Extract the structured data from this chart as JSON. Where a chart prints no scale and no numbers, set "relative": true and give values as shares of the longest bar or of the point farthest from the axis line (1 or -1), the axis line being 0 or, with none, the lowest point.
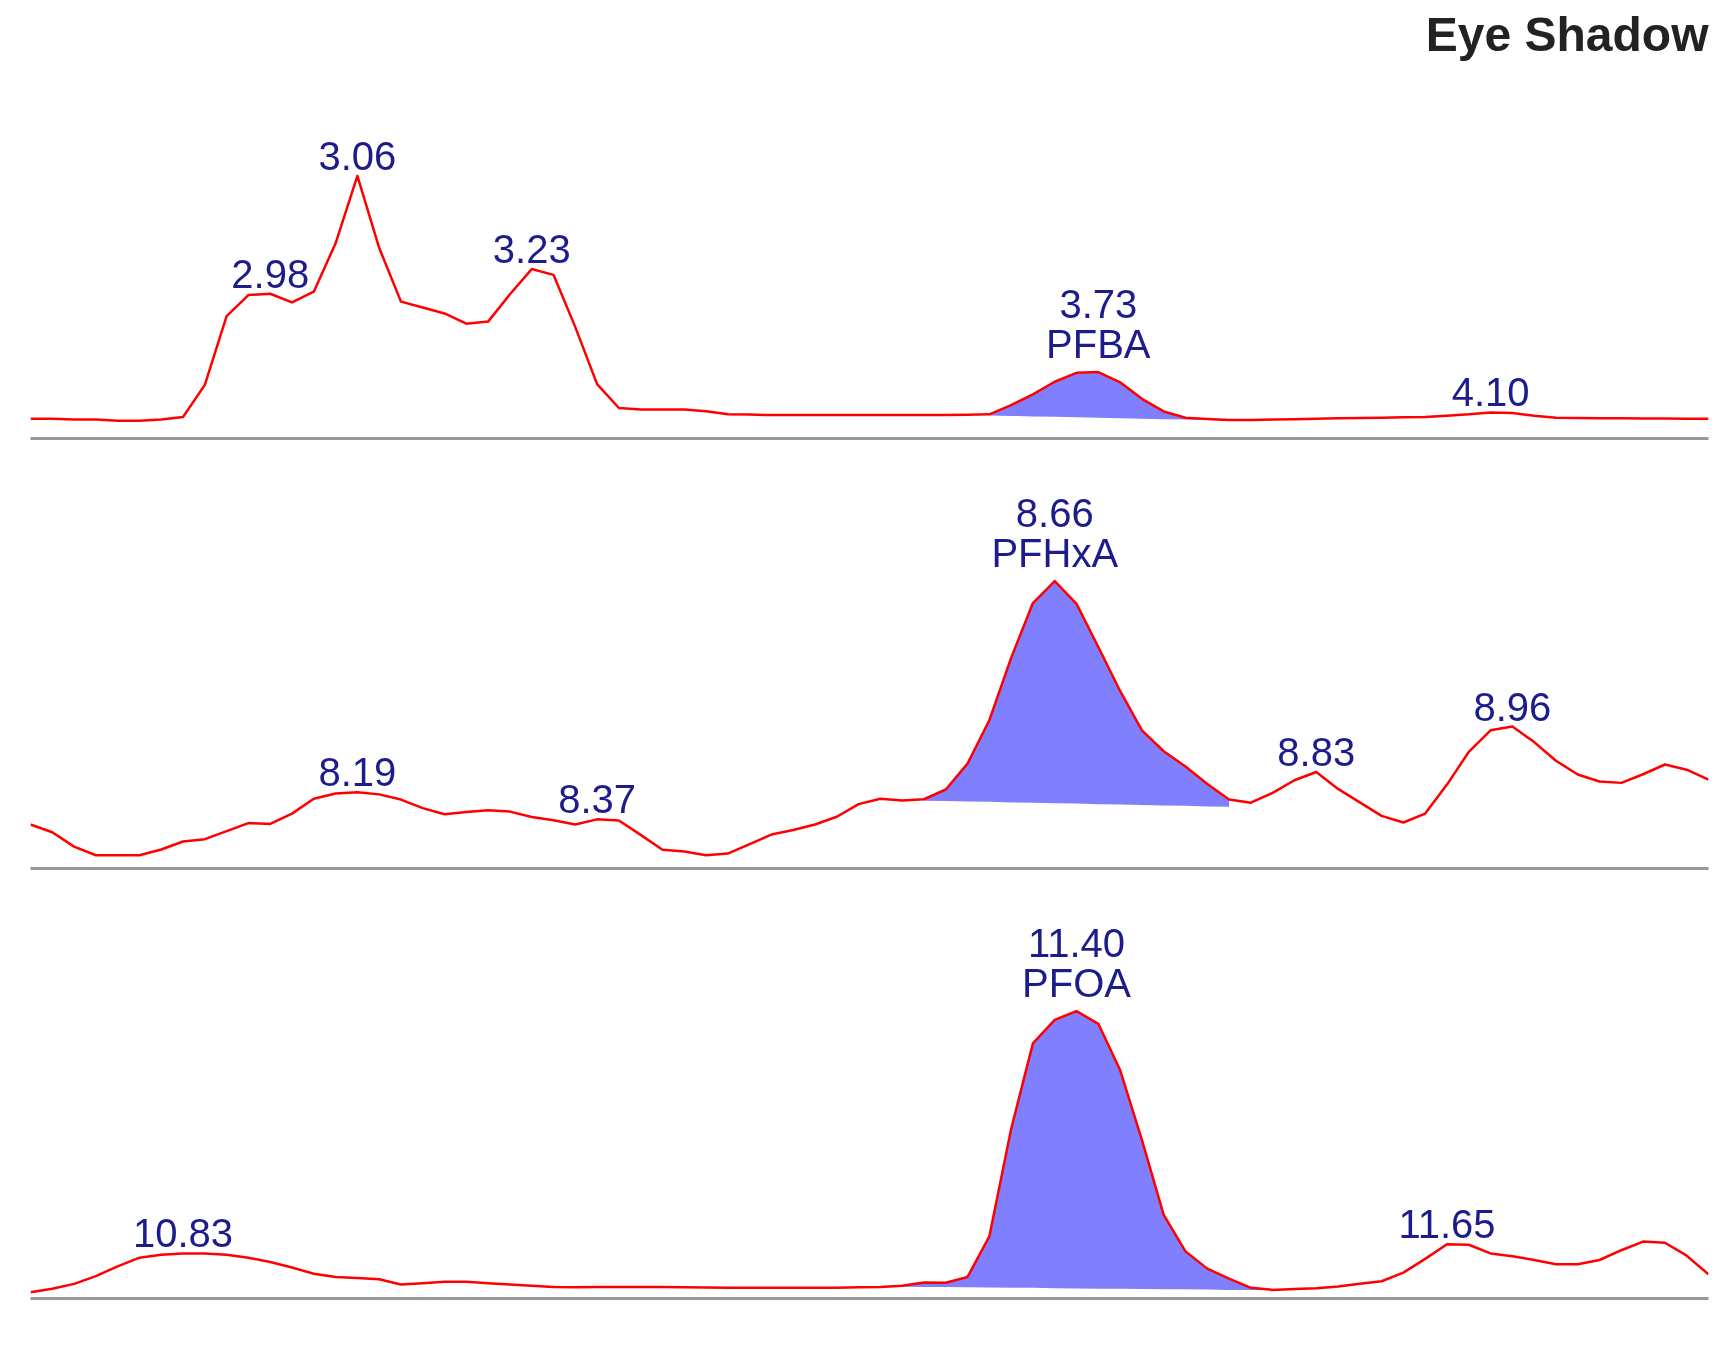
{
  "chart_data": [
    {
      "type": "line",
      "title": "Eye Shadow",
      "relative": true,
      "categories": [
        null,
        null,
        null,
        null,
        null,
        null,
        null,
        null,
        null,
        null,
        null,
        null,
        null,
        null,
        null,
        null,
        null,
        null,
        null,
        null,
        null,
        null,
        null,
        null,
        null,
        null,
        null,
        null,
        null,
        null,
        null,
        null,
        null,
        null,
        null,
        null,
        null,
        null,
        null,
        null,
        null,
        null,
        null,
        null,
        null,
        null,
        null,
        null,
        null,
        null,
        null,
        null,
        null,
        null,
        null,
        null,
        null,
        null,
        null,
        null,
        null,
        null,
        null,
        null,
        null,
        null,
        null,
        null,
        null,
        null,
        null,
        null,
        null,
        null,
        null,
        null,
        null,
        null
      ],
      "series": [
        {
          "color": "#ff0000",
          "values": [
            0.075,
            0.075,
            0.072,
            0.072,
            0.068,
            0.068,
            0.072,
            0.082,
            0.204,
            0.466,
            0.546,
            0.551,
            0.518,
            0.559,
            0.743,
            1,
            0.726,
            0.521,
            0.499,
            0.476,
            0.437,
            0.445,
            0.549,
            0.645,
            0.623,
            0.424,
            0.207,
            0.116,
            0.11,
            0.11,
            0.11,
            0.104,
            0.092,
            0.091,
            0.089,
            0.089,
            0.089,
            0.089,
            0.089,
            0.089,
            0.089,
            0.089,
            0.089,
            0.09,
            0.092,
            0.127,
            0.168,
            0.216,
            0.25,
            0.253,
            0.214,
            0.151,
            0.103,
            0.079,
            0.074,
            0.07,
            0.07,
            0.072,
            0.073,
            0.075,
            0.077,
            0.078,
            0.079,
            0.081,
            0.082,
            0.087,
            0.092,
            0.099,
            0.097,
            0.087,
            0.079,
            0.078,
            0.077,
            0.077,
            0.076,
            0.076,
            0.075,
            0.075
          ],
          "lower": [
            null,
            null,
            null,
            null,
            null,
            null,
            null,
            null,
            null,
            null,
            null,
            null,
            null,
            null,
            null,
            null,
            null,
            null,
            null,
            null,
            null,
            null,
            null,
            null,
            null,
            null,
            null,
            null,
            null,
            null,
            null,
            null,
            null,
            null,
            null,
            null,
            null,
            null,
            null,
            null,
            null,
            null,
            null,
            null,
            0.088,
            0.086,
            0.084,
            0.083,
            0.081,
            0.079,
            0.077,
            0.075,
            0.073,
            0.072,
            0.07,
            0.068,
            null,
            null,
            null,
            null,
            null,
            null,
            null,
            null,
            null,
            null,
            null,
            null,
            null,
            null,
            null,
            null,
            null,
            null,
            null,
            null,
            null,
            null
          ],
          "upper": [
            null,
            null,
            null,
            null,
            null,
            null,
            null,
            null,
            null,
            null,
            null,
            null,
            null,
            null,
            null,
            null,
            null,
            null,
            null,
            null,
            null,
            null,
            null,
            null,
            null,
            null,
            null,
            null,
            null,
            null,
            null,
            null,
            null,
            null,
            null,
            null,
            null,
            null,
            null,
            null,
            null,
            null,
            null,
            null,
            0.092,
            0.127,
            0.168,
            0.216,
            0.25,
            0.253,
            0.214,
            0.151,
            0.103,
            0.079,
            0.074,
            0.07,
            null,
            null,
            null,
            null,
            null,
            null,
            null,
            null,
            null,
            null,
            null,
            null,
            null,
            null,
            null,
            null,
            null,
            null,
            null,
            null,
            null,
            null
          ]
        }
      ],
      "annotations": [
        {
          "text": "2.98",
          "y": 0.551
        },
        {
          "text": "3.06",
          "y": 1
        },
        {
          "text": "3.23",
          "y": 0.645
        },
        {
          "text": "3.73",
          "y": 0.253
        },
        {
          "text": "PFBA",
          "y": 0.253
        },
        {
          "text": "4.10",
          "y": 0.099
        }
      ]
    },
    {
      "type": "line",
      "relative": true,
      "categories": [
        null,
        null,
        null,
        null,
        null,
        null,
        null,
        null,
        null,
        null,
        null,
        null,
        null,
        null,
        null,
        null,
        null,
        null,
        null,
        null,
        null,
        null,
        null,
        null,
        null,
        null,
        null,
        null,
        null,
        null,
        null,
        null,
        null,
        null,
        null,
        null,
        null,
        null,
        null,
        null,
        null,
        null,
        null,
        null,
        null,
        null,
        null,
        null,
        null,
        null,
        null,
        null,
        null,
        null,
        null,
        null,
        null,
        null,
        null,
        null,
        null,
        null,
        null,
        null,
        null,
        null,
        null,
        null,
        null,
        null,
        null,
        null,
        null,
        null,
        null,
        null,
        null,
        null
      ],
      "series": [
        {
          "color": "#ff0000",
          "values": [
            0.153,
            0.126,
            0.076,
            0.046,
            0.046,
            0.046,
            0.066,
            0.094,
            0.102,
            0.13,
            0.158,
            0.155,
            0.191,
            0.243,
            0.261,
            0.265,
            0.258,
            0.24,
            0.21,
            0.189,
            0.197,
            0.203,
            0.198,
            0.179,
            0.168,
            0.153,
            0.171,
            0.167,
            0.117,
            0.065,
            0.059,
            0.046,
            0.052,
            0.085,
            0.118,
            0.134,
            0.153,
            0.18,
            0.224,
            0.243,
            0.237,
            0.241,
            0.275,
            0.365,
            0.516,
            0.733,
            0.924,
            1,
            0.921,
            0.771,
            0.618,
            0.481,
            0.408,
            0.355,
            0.294,
            0.24,
            0.229,
            0.263,
            0.307,
            0.336,
            0.277,
            0.23,
            0.183,
            0.16,
            0.191,
            0.292,
            0.406,
            0.481,
            0.494,
            0.44,
            0.375,
            0.327,
            0.303,
            0.298,
            0.328,
            0.362,
            0.344,
            0.309
          ],
          "lower": [
            null,
            null,
            null,
            null,
            null,
            null,
            null,
            null,
            null,
            null,
            null,
            null,
            null,
            null,
            null,
            null,
            null,
            null,
            null,
            null,
            null,
            null,
            null,
            null,
            null,
            null,
            null,
            null,
            null,
            null,
            null,
            null,
            null,
            null,
            null,
            null,
            null,
            null,
            null,
            null,
            null,
            0.236,
            0.235,
            0.233,
            0.232,
            0.23,
            0.229,
            0.227,
            0.226,
            0.224,
            0.223,
            0.221,
            0.219,
            0.218,
            0.216,
            0.215,
            null,
            null,
            null,
            null,
            null,
            null,
            null,
            null,
            null,
            null,
            null,
            null,
            null,
            null,
            null,
            null,
            null,
            null,
            null,
            null,
            null,
            null
          ],
          "upper": [
            null,
            null,
            null,
            null,
            null,
            null,
            null,
            null,
            null,
            null,
            null,
            null,
            null,
            null,
            null,
            null,
            null,
            null,
            null,
            null,
            null,
            null,
            null,
            null,
            null,
            null,
            null,
            null,
            null,
            null,
            null,
            null,
            null,
            null,
            null,
            null,
            null,
            null,
            null,
            null,
            null,
            0.241,
            0.275,
            0.365,
            0.516,
            0.733,
            0.924,
            1,
            0.921,
            0.771,
            0.618,
            0.481,
            0.408,
            0.355,
            0.294,
            0.24,
            null,
            null,
            null,
            null,
            null,
            null,
            null,
            null,
            null,
            null,
            null,
            null,
            null,
            null,
            null,
            null,
            null,
            null,
            null,
            null,
            null,
            null
          ]
        }
      ],
      "annotations": [
        {
          "text": "8.19",
          "y": 0.265
        },
        {
          "text": "8.37",
          "y": 0.171
        },
        {
          "text": "8.66",
          "y": 1
        },
        {
          "text": "PFHxA",
          "y": 1
        },
        {
          "text": "8.83",
          "y": 0.336
        },
        {
          "text": "8.96",
          "y": 0.494
        }
      ]
    },
    {
      "type": "line",
      "relative": true,
      "categories": [
        null,
        null,
        null,
        null,
        null,
        null,
        null,
        null,
        null,
        null,
        null,
        null,
        null,
        null,
        null,
        null,
        null,
        null,
        null,
        null,
        null,
        null,
        null,
        null,
        null,
        null,
        null,
        null,
        null,
        null,
        null,
        null,
        null,
        null,
        null,
        null,
        null,
        null,
        null,
        null,
        null,
        null,
        null,
        null,
        null,
        null,
        null,
        null,
        null,
        null,
        null,
        null,
        null,
        null,
        null,
        null,
        null,
        null,
        null,
        null,
        null,
        null,
        null,
        null,
        null,
        null,
        null,
        null,
        null,
        null,
        null,
        null,
        null,
        null,
        null,
        null,
        null,
        null
      ],
      "series": [
        {
          "color": "#ff0000",
          "values": [
            0.022,
            0.034,
            0.051,
            0.078,
            0.112,
            0.142,
            0.152,
            0.157,
            0.157,
            0.152,
            0.142,
            0.127,
            0.108,
            0.086,
            0.075,
            0.071,
            0.067,
            0.049,
            0.053,
            0.058,
            0.058,
            0.053,
            0.049,
            0.044,
            0.04,
            0.039,
            0.04,
            0.04,
            0.04,
            0.04,
            0.039,
            0.038,
            0.037,
            0.037,
            0.037,
            0.037,
            0.037,
            0.037,
            0.039,
            0.04,
            0.044,
            0.056,
            0.055,
            0.075,
            0.216,
            0.59,
            0.888,
            0.97,
            1,
            0.956,
            0.795,
            0.552,
            0.291,
            0.164,
            0.104,
            0.069,
            0.037,
            0.03,
            0.033,
            0.036,
            0.042,
            0.051,
            0.06,
            0.09,
            0.138,
            0.189,
            0.187,
            0.157,
            0.147,
            0.134,
            0.119,
            0.119,
            0.134,
            0.168,
            0.198,
            0.194,
            0.149,
            0.084
          ],
          "lower": [
            null,
            null,
            null,
            null,
            null,
            null,
            null,
            null,
            null,
            null,
            null,
            null,
            null,
            null,
            null,
            null,
            null,
            null,
            null,
            null,
            null,
            null,
            null,
            null,
            null,
            null,
            null,
            null,
            null,
            null,
            null,
            null,
            null,
            null,
            null,
            null,
            null,
            null,
            null,
            null,
            0.041,
            0.04,
            0.04,
            0.039,
            0.038,
            0.037,
            0.037,
            0.036,
            0.035,
            0.034,
            0.034,
            0.033,
            0.032,
            0.032,
            0.031,
            0.03,
            0.03,
            0.03,
            null,
            null,
            null,
            null,
            null,
            null,
            null,
            null,
            null,
            null,
            null,
            null,
            null,
            null,
            null,
            null,
            null,
            null,
            null,
            null
          ],
          "upper": [
            null,
            null,
            null,
            null,
            null,
            null,
            null,
            null,
            null,
            null,
            null,
            null,
            null,
            null,
            null,
            null,
            null,
            null,
            null,
            null,
            null,
            null,
            null,
            null,
            null,
            null,
            null,
            null,
            null,
            null,
            null,
            null,
            null,
            null,
            null,
            null,
            null,
            null,
            null,
            null,
            0.044,
            0.056,
            0.055,
            0.075,
            0.216,
            0.59,
            0.888,
            0.97,
            1,
            0.956,
            0.795,
            0.552,
            0.291,
            0.164,
            0.104,
            0.069,
            0.037,
            0.03,
            null,
            null,
            null,
            null,
            null,
            null,
            null,
            null,
            null,
            null,
            null,
            null,
            null,
            null,
            null,
            null,
            null,
            null,
            null,
            null
          ]
        }
      ],
      "annotations": [
        {
          "text": "10.83",
          "y": 0.157
        },
        {
          "text": "11.40",
          "y": 1
        },
        {
          "text": "PFOA",
          "y": 1
        },
        {
          "text": "11.65",
          "y": 0.189
        }
      ]
    }
  ]
}
